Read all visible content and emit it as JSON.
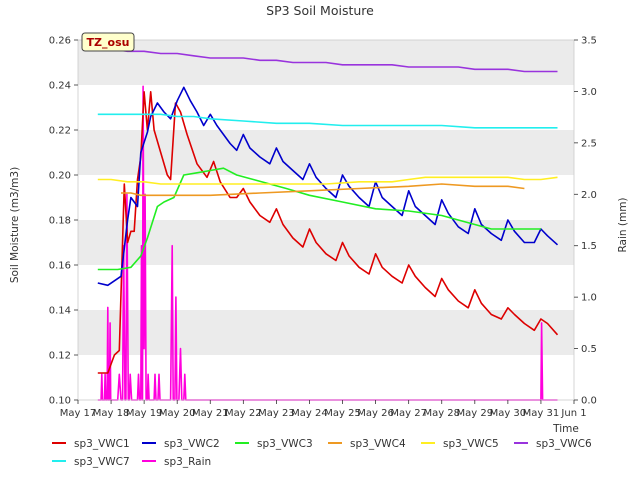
{
  "chart_data": {
    "type": "line",
    "title": "SP3 Soil Moisture",
    "ylabel": "Soil Moisture (m3/m3)",
    "y2label": "Rain (mm)",
    "xlabel": "Time",
    "site_label": "TZ_osu",
    "ylim": [
      0.1,
      0.26
    ],
    "y2lim": [
      0.0,
      3.5
    ],
    "xlim": [
      0,
      15
    ],
    "yticks": [
      "0.10",
      "0.12",
      "0.14",
      "0.16",
      "0.18",
      "0.20",
      "0.22",
      "0.24",
      "0.26"
    ],
    "y2ticks": [
      "0.0",
      "0.5",
      "1.0",
      "1.5",
      "2.0",
      "2.5",
      "3.0",
      "3.5"
    ],
    "xticks": [
      "May 17",
      "May 18",
      "May 19",
      "May 20",
      "May 21",
      "May 22",
      "May 23",
      "May 24",
      "May 25",
      "May 26",
      "May 27",
      "May 28",
      "May 29",
      "May 30",
      "May 31",
      "Jun 1"
    ],
    "grid": "horizontal bands",
    "legend_placement": "bottom",
    "series": [
      {
        "name": "sp3_VWC1",
        "color": "#dd0000",
        "axis": "left",
        "points": [
          [
            0.6,
            0.112
          ],
          [
            0.9,
            0.112
          ],
          [
            1.1,
            0.12
          ],
          [
            1.25,
            0.122
          ],
          [
            1.4,
            0.196
          ],
          [
            1.5,
            0.17
          ],
          [
            1.6,
            0.175
          ],
          [
            1.7,
            0.175
          ],
          [
            1.8,
            0.198
          ],
          [
            1.9,
            0.208
          ],
          [
            2.0,
            0.237
          ],
          [
            2.1,
            0.22
          ],
          [
            2.2,
            0.237
          ],
          [
            2.3,
            0.22
          ],
          [
            2.5,
            0.21
          ],
          [
            2.7,
            0.2
          ],
          [
            2.8,
            0.198
          ],
          [
            2.95,
            0.232
          ],
          [
            3.1,
            0.228
          ],
          [
            3.3,
            0.218
          ],
          [
            3.6,
            0.205
          ],
          [
            3.9,
            0.199
          ],
          [
            4.1,
            0.206
          ],
          [
            4.3,
            0.197
          ],
          [
            4.6,
            0.19
          ],
          [
            4.8,
            0.19
          ],
          [
            5.0,
            0.194
          ],
          [
            5.2,
            0.188
          ],
          [
            5.5,
            0.182
          ],
          [
            5.8,
            0.179
          ],
          [
            6.0,
            0.185
          ],
          [
            6.2,
            0.178
          ],
          [
            6.5,
            0.172
          ],
          [
            6.8,
            0.168
          ],
          [
            7.0,
            0.176
          ],
          [
            7.2,
            0.17
          ],
          [
            7.5,
            0.165
          ],
          [
            7.8,
            0.162
          ],
          [
            8.0,
            0.17
          ],
          [
            8.2,
            0.164
          ],
          [
            8.5,
            0.159
          ],
          [
            8.8,
            0.156
          ],
          [
            9.0,
            0.165
          ],
          [
            9.2,
            0.159
          ],
          [
            9.5,
            0.155
          ],
          [
            9.8,
            0.152
          ],
          [
            10.0,
            0.16
          ],
          [
            10.2,
            0.155
          ],
          [
            10.5,
            0.15
          ],
          [
            10.8,
            0.146
          ],
          [
            11.0,
            0.154
          ],
          [
            11.2,
            0.149
          ],
          [
            11.5,
            0.144
          ],
          [
            11.8,
            0.141
          ],
          [
            12.0,
            0.149
          ],
          [
            12.2,
            0.143
          ],
          [
            12.5,
            0.138
          ],
          [
            12.8,
            0.136
          ],
          [
            13.0,
            0.141
          ],
          [
            13.2,
            0.138
          ],
          [
            13.5,
            0.134
          ],
          [
            13.8,
            0.131
          ],
          [
            14.0,
            0.136
          ],
          [
            14.2,
            0.134
          ],
          [
            14.5,
            0.129
          ]
        ]
      },
      {
        "name": "sp3_VWC2",
        "color": "#0000cc",
        "axis": "left",
        "points": [
          [
            0.6,
            0.152
          ],
          [
            0.9,
            0.151
          ],
          [
            1.1,
            0.153
          ],
          [
            1.3,
            0.155
          ],
          [
            1.5,
            0.18
          ],
          [
            1.6,
            0.19
          ],
          [
            1.8,
            0.186
          ],
          [
            1.9,
            0.21
          ],
          [
            2.1,
            0.219
          ],
          [
            2.2,
            0.226
          ],
          [
            2.4,
            0.232
          ],
          [
            2.6,
            0.228
          ],
          [
            2.8,
            0.225
          ],
          [
            3.0,
            0.233
          ],
          [
            3.2,
            0.239
          ],
          [
            3.4,
            0.233
          ],
          [
            3.6,
            0.228
          ],
          [
            3.8,
            0.222
          ],
          [
            4.0,
            0.227
          ],
          [
            4.2,
            0.222
          ],
          [
            4.4,
            0.218
          ],
          [
            4.6,
            0.214
          ],
          [
            4.8,
            0.211
          ],
          [
            5.0,
            0.218
          ],
          [
            5.2,
            0.212
          ],
          [
            5.5,
            0.208
          ],
          [
            5.8,
            0.205
          ],
          [
            6.0,
            0.212
          ],
          [
            6.2,
            0.206
          ],
          [
            6.5,
            0.202
          ],
          [
            6.8,
            0.198
          ],
          [
            7.0,
            0.205
          ],
          [
            7.2,
            0.199
          ],
          [
            7.5,
            0.194
          ],
          [
            7.8,
            0.19
          ],
          [
            8.0,
            0.2
          ],
          [
            8.2,
            0.195
          ],
          [
            8.5,
            0.19
          ],
          [
            8.8,
            0.186
          ],
          [
            9.0,
            0.197
          ],
          [
            9.2,
            0.19
          ],
          [
            9.5,
            0.186
          ],
          [
            9.8,
            0.182
          ],
          [
            10.0,
            0.193
          ],
          [
            10.2,
            0.186
          ],
          [
            10.5,
            0.182
          ],
          [
            10.8,
            0.178
          ],
          [
            11.0,
            0.189
          ],
          [
            11.2,
            0.183
          ],
          [
            11.5,
            0.177
          ],
          [
            11.8,
            0.174
          ],
          [
            12.0,
            0.185
          ],
          [
            12.2,
            0.178
          ],
          [
            12.5,
            0.174
          ],
          [
            12.8,
            0.171
          ],
          [
            13.0,
            0.18
          ],
          [
            13.2,
            0.175
          ],
          [
            13.5,
            0.17
          ],
          [
            13.8,
            0.17
          ],
          [
            14.0,
            0.176
          ],
          [
            14.2,
            0.173
          ],
          [
            14.5,
            0.169
          ]
        ]
      },
      {
        "name": "sp3_VWC3",
        "color": "#22ee22",
        "axis": "left",
        "points": [
          [
            0.6,
            0.158
          ],
          [
            1.2,
            0.158
          ],
          [
            1.6,
            0.159
          ],
          [
            1.9,
            0.164
          ],
          [
            2.1,
            0.172
          ],
          [
            2.4,
            0.186
          ],
          [
            2.6,
            0.188
          ],
          [
            2.9,
            0.19
          ],
          [
            3.2,
            0.2
          ],
          [
            3.6,
            0.201
          ],
          [
            4.0,
            0.202
          ],
          [
            4.4,
            0.203
          ],
          [
            4.8,
            0.2
          ],
          [
            5.3,
            0.198
          ],
          [
            5.8,
            0.196
          ],
          [
            6.3,
            0.194
          ],
          [
            7.0,
            0.191
          ],
          [
            8.0,
            0.188
          ],
          [
            9.0,
            0.185
          ],
          [
            10.0,
            0.184
          ],
          [
            11.0,
            0.182
          ],
          [
            12.0,
            0.178
          ],
          [
            12.5,
            0.176
          ],
          [
            13.0,
            0.176
          ],
          [
            14.0,
            0.176
          ]
        ]
      },
      {
        "name": "sp3_VWC4",
        "color": "#ee9922",
        "axis": "left",
        "points": [
          [
            1.3,
            0.192
          ],
          [
            1.6,
            0.192
          ],
          [
            1.9,
            0.191
          ],
          [
            2.5,
            0.191
          ],
          [
            4.0,
            0.191
          ],
          [
            5.5,
            0.192
          ],
          [
            7.0,
            0.193
          ],
          [
            8.5,
            0.194
          ],
          [
            10.0,
            0.195
          ],
          [
            11.0,
            0.196
          ],
          [
            12.0,
            0.195
          ],
          [
            13.0,
            0.195
          ],
          [
            13.5,
            0.194
          ]
        ]
      },
      {
        "name": "sp3_VWC5",
        "color": "#ffee22",
        "axis": "left",
        "points": [
          [
            0.6,
            0.198
          ],
          [
            1.0,
            0.198
          ],
          [
            1.5,
            0.197
          ],
          [
            2.0,
            0.197
          ],
          [
            2.5,
            0.196
          ],
          [
            3.5,
            0.196
          ],
          [
            4.5,
            0.196
          ],
          [
            5.5,
            0.196
          ],
          [
            6.5,
            0.196
          ],
          [
            7.5,
            0.196
          ],
          [
            8.5,
            0.197
          ],
          [
            9.5,
            0.197
          ],
          [
            10.0,
            0.198
          ],
          [
            10.5,
            0.199
          ],
          [
            11.0,
            0.199
          ],
          [
            11.5,
            0.199
          ],
          [
            12.0,
            0.199
          ],
          [
            12.5,
            0.199
          ],
          [
            13.0,
            0.199
          ],
          [
            13.5,
            0.198
          ],
          [
            14.0,
            0.198
          ],
          [
            14.5,
            0.199
          ]
        ]
      },
      {
        "name": "sp3_VWC6",
        "color": "#9933dd",
        "axis": "left",
        "points": [
          [
            0.6,
            0.256
          ],
          [
            1.0,
            0.256
          ],
          [
            1.5,
            0.255
          ],
          [
            2.0,
            0.255
          ],
          [
            2.5,
            0.254
          ],
          [
            3.0,
            0.254
          ],
          [
            3.5,
            0.253
          ],
          [
            4.0,
            0.252
          ],
          [
            4.5,
            0.252
          ],
          [
            5.0,
            0.252
          ],
          [
            5.5,
            0.251
          ],
          [
            6.0,
            0.251
          ],
          [
            6.5,
            0.25
          ],
          [
            7.0,
            0.25
          ],
          [
            7.5,
            0.25
          ],
          [
            8.0,
            0.249
          ],
          [
            8.5,
            0.249
          ],
          [
            9.0,
            0.249
          ],
          [
            9.5,
            0.249
          ],
          [
            10.0,
            0.248
          ],
          [
            10.5,
            0.248
          ],
          [
            11.0,
            0.248
          ],
          [
            11.5,
            0.248
          ],
          [
            12.0,
            0.247
          ],
          [
            12.5,
            0.247
          ],
          [
            13.0,
            0.247
          ],
          [
            13.5,
            0.246
          ],
          [
            14.0,
            0.246
          ],
          [
            14.5,
            0.246
          ]
        ]
      },
      {
        "name": "sp3_VWC7",
        "color": "#22eeee",
        "axis": "left",
        "points": [
          [
            0.6,
            0.227
          ],
          [
            1.0,
            0.227
          ],
          [
            1.5,
            0.227
          ],
          [
            2.0,
            0.227
          ],
          [
            2.5,
            0.227
          ],
          [
            3.0,
            0.226
          ],
          [
            3.5,
            0.226
          ],
          [
            4.0,
            0.225
          ],
          [
            5.0,
            0.224
          ],
          [
            6.0,
            0.223
          ],
          [
            7.0,
            0.223
          ],
          [
            8.0,
            0.222
          ],
          [
            9.0,
            0.222
          ],
          [
            10.0,
            0.222
          ],
          [
            11.0,
            0.222
          ],
          [
            12.0,
            0.221
          ],
          [
            13.0,
            0.221
          ],
          [
            14.0,
            0.221
          ],
          [
            14.5,
            0.221
          ]
        ]
      },
      {
        "name": "sp3_Rain",
        "color": "#ff00dd",
        "axis": "right",
        "points": [
          [
            0.6,
            0.0
          ],
          [
            0.7,
            0.0
          ],
          [
            0.72,
            0.25
          ],
          [
            0.74,
            0.0
          ],
          [
            0.8,
            0.0
          ],
          [
            0.82,
            0.25
          ],
          [
            0.84,
            0.0
          ],
          [
            0.88,
            0.0
          ],
          [
            0.9,
            0.9
          ],
          [
            0.92,
            0.0
          ],
          [
            0.95,
            0.0
          ],
          [
            0.97,
            0.75
          ],
          [
            0.99,
            0.0
          ],
          [
            1.2,
            0.0
          ],
          [
            1.25,
            0.25
          ],
          [
            1.3,
            0.0
          ],
          [
            1.35,
            0.0
          ],
          [
            1.38,
            1.5
          ],
          [
            1.42,
            0.0
          ],
          [
            1.45,
            0.0
          ],
          [
            1.48,
            2.0
          ],
          [
            1.52,
            0.0
          ],
          [
            1.55,
            0.0
          ],
          [
            1.58,
            0.25
          ],
          [
            1.62,
            0.0
          ],
          [
            1.8,
            0.0
          ],
          [
            1.83,
            0.25
          ],
          [
            1.86,
            0.0
          ],
          [
            1.9,
            0.0
          ],
          [
            1.92,
            1.5
          ],
          [
            1.95,
            0.0
          ],
          [
            1.97,
            3.05
          ],
          [
            2.0,
            0.5
          ],
          [
            2.03,
            2.0
          ],
          [
            2.06,
            0.0
          ],
          [
            2.1,
            0.0
          ],
          [
            2.12,
            0.25
          ],
          [
            2.15,
            0.0
          ],
          [
            2.3,
            0.0
          ],
          [
            2.33,
            0.25
          ],
          [
            2.36,
            0.0
          ],
          [
            2.42,
            0.0
          ],
          [
            2.45,
            0.25
          ],
          [
            2.48,
            0.0
          ],
          [
            2.55,
            0.0
          ],
          [
            2.8,
            0.0
          ],
          [
            2.85,
            1.5
          ],
          [
            2.88,
            0.0
          ],
          [
            2.93,
            0.0
          ],
          [
            2.96,
            1.0
          ],
          [
            2.99,
            0.0
          ],
          [
            3.05,
            0.0
          ],
          [
            3.1,
            0.5
          ],
          [
            3.14,
            0.0
          ],
          [
            3.2,
            0.0
          ],
          [
            3.23,
            0.25
          ],
          [
            3.26,
            0.0
          ],
          [
            3.3,
            0.0
          ],
          [
            14.0,
            0.0
          ],
          [
            14.02,
            0.75
          ],
          [
            14.05,
            0.0
          ],
          [
            14.5,
            0.0
          ]
        ]
      }
    ]
  }
}
